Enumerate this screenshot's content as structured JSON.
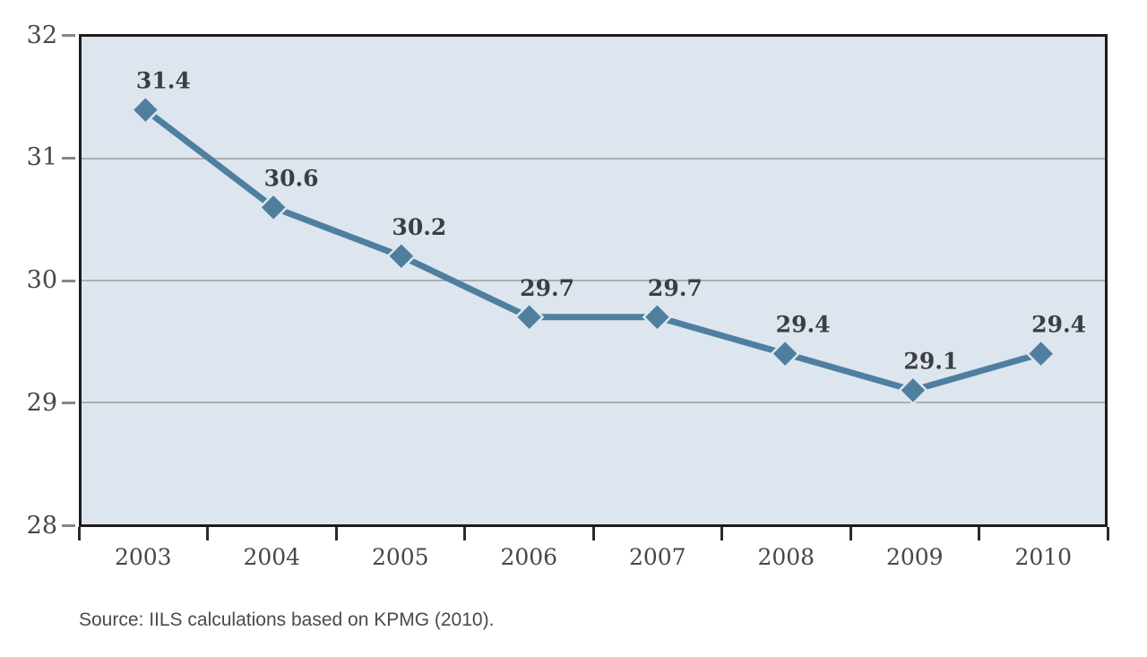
{
  "chart_data": {
    "type": "line",
    "title": "",
    "categories": [
      "2003",
      "2004",
      "2005",
      "2006",
      "2007",
      "2008",
      "2009",
      "2010"
    ],
    "series": [
      {
        "name": "",
        "values": [
          31.4,
          30.6,
          30.2,
          29.7,
          29.7,
          29.4,
          29.1,
          29.4
        ]
      }
    ],
    "data_labels": [
      "31.4",
      "30.6",
      "30.2",
      "29.7",
      "29.7",
      "29.4",
      "29.1",
      "29.4"
    ],
    "xlabel": "",
    "ylabel": "",
    "ylim": [
      28,
      32
    ],
    "yticks": [
      {
        "value": 32,
        "label": "32"
      },
      {
        "value": 31,
        "label": "31"
      },
      {
        "value": 30,
        "label": "30"
      },
      {
        "value": 29,
        "label": "29"
      },
      {
        "value": 28,
        "label": "28"
      }
    ],
    "gridlines": [
      31,
      30,
      29
    ],
    "grid": "horizontal-only",
    "legend_position": "none",
    "marker": "diamond"
  },
  "source": {
    "text": "Source: IILS calculations based on KPMG (2010)."
  },
  "colors": {
    "line": "#4f7f9e",
    "marker": "#4f7f9e",
    "plot_background": "#dde5ee",
    "gridline": "#adaeb0",
    "axis_border": "#1c1c1c",
    "y_tick_mark": "#85878a",
    "x_tick_mark": "#2b2b2b",
    "tick_label_text": "#44474c",
    "data_label_text": "#3b3e42",
    "source_text": "#4a4a4a",
    "page_background": "#ffffff"
  }
}
